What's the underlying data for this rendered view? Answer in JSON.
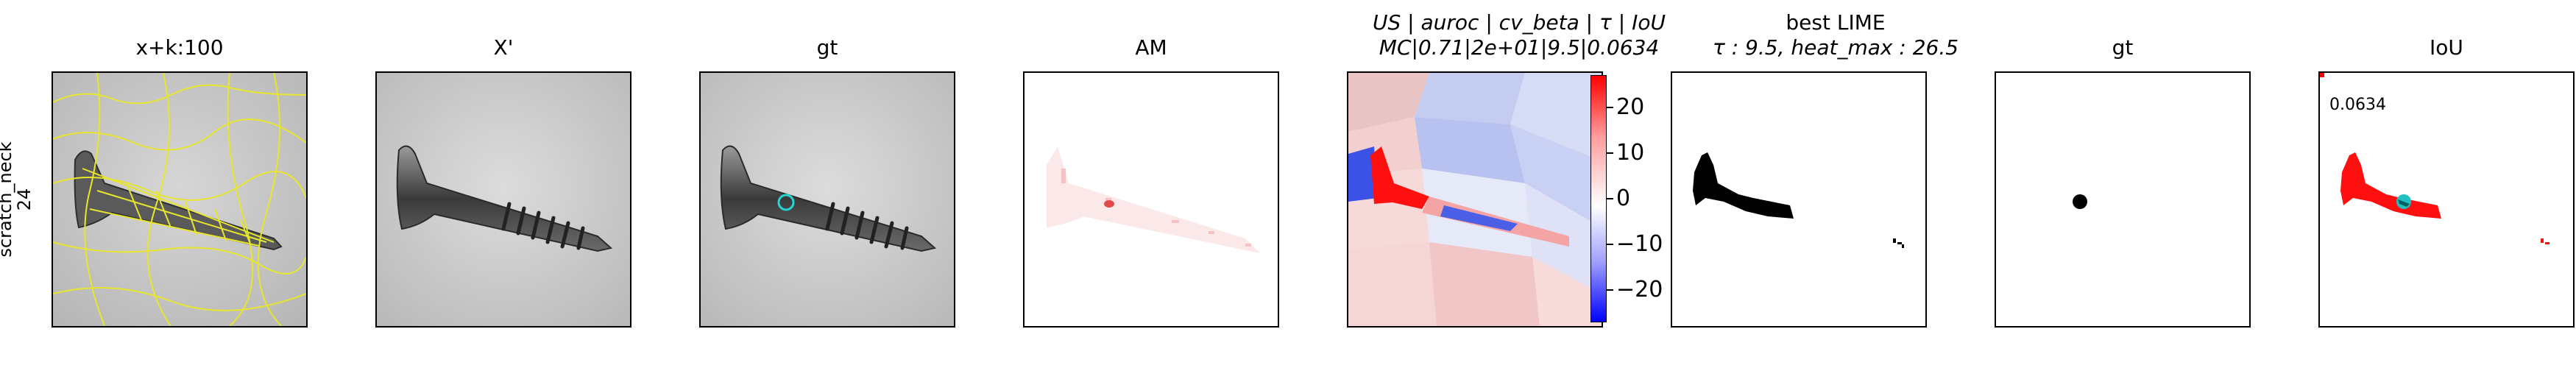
{
  "row_label": {
    "line1": "scratch_neck",
    "line2": "24"
  },
  "panels": [
    {
      "title": "x+k:100"
    },
    {
      "title": "X'"
    },
    {
      "title": "gt"
    },
    {
      "title": "AM"
    },
    {
      "title_line1": "US | auroc | cv_beta | τ | IoU",
      "title_line2": "MC|0.71|2e+01|9.5|0.0634"
    },
    {
      "title_line1": "best LIME",
      "title_line2": "τ : 9.5, heat_max : 26.5"
    },
    {
      "title": "gt"
    },
    {
      "title": "IoU",
      "annotation": "0.0634"
    }
  ],
  "colorbar": {
    "ticks": [
      "20",
      "10",
      "0",
      "−10",
      "−20"
    ],
    "colormap": "bwr",
    "max_color": "#ff0000",
    "min_color": "#0000ff"
  },
  "colors": {
    "contour": "#e6e62e",
    "gt_marker": "#25d4d4",
    "highlight": "#ff0000",
    "mask": "#000000"
  }
}
